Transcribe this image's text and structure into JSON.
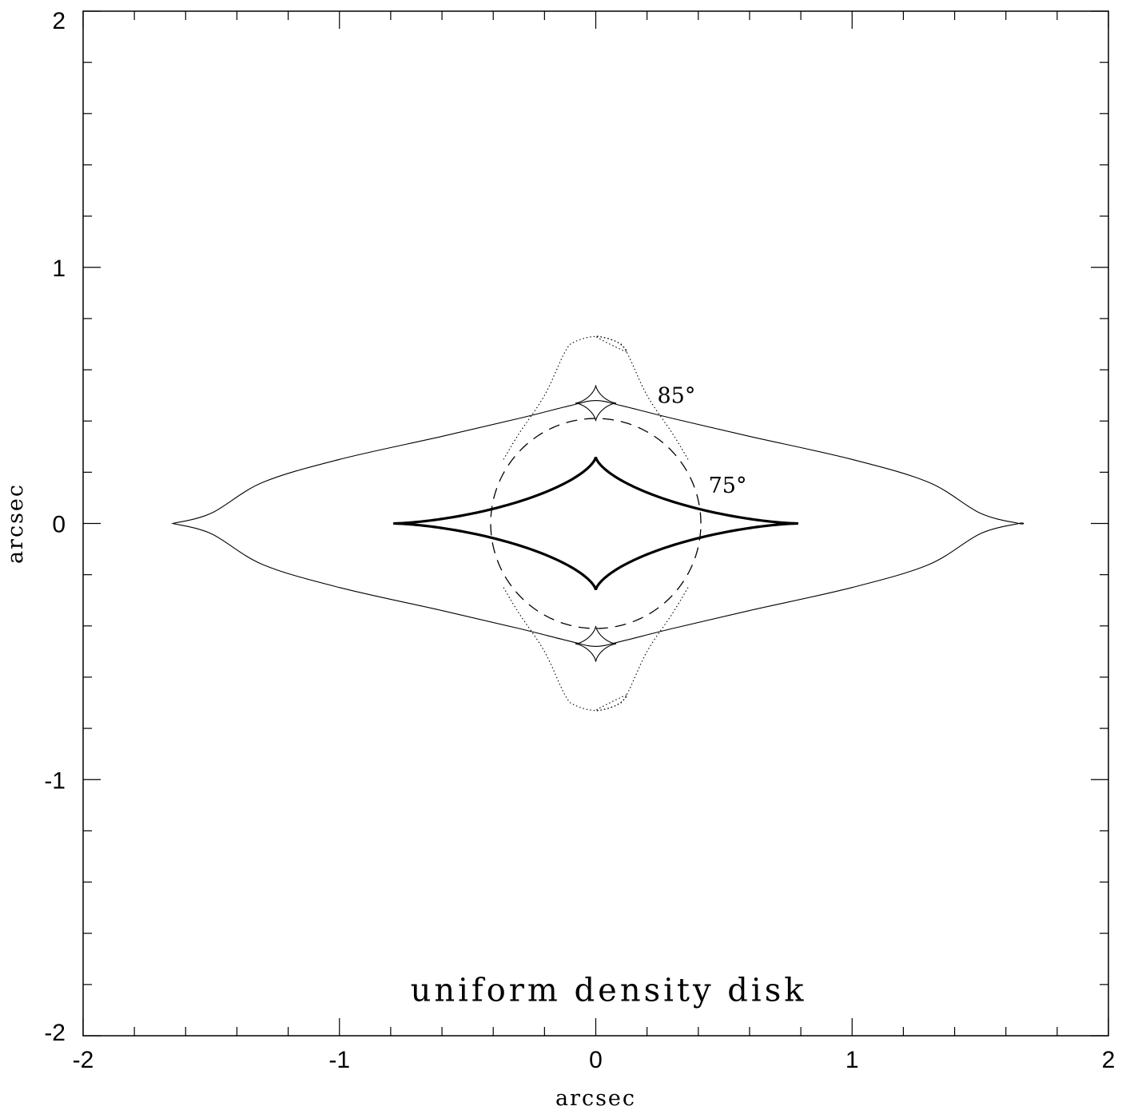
{
  "chart_data": {
    "type": "line",
    "xlabel": "arcsec",
    "ylabel": "arcsec",
    "xlim": [
      -2,
      2
    ],
    "ylim": [
      -2,
      2
    ],
    "x_ticks": [
      -2,
      -1,
      0,
      1,
      2
    ],
    "y_ticks": [
      -2,
      -1,
      0,
      1,
      2
    ],
    "x_tick_labels": [
      "-2",
      "-1",
      "0",
      "1",
      "2"
    ],
    "y_tick_labels": [
      "-2",
      "-1",
      "0",
      "1",
      "2"
    ],
    "minor_tick_step": 0.2,
    "grid": false,
    "caption": "uniform density disk",
    "annotations": [
      {
        "text": "85°",
        "x": 0.24,
        "y": 0.47
      },
      {
        "text": "75°",
        "x": 0.44,
        "y": 0.12
      }
    ],
    "series": [
      {
        "style": "bold-solid",
        "shape": "astroid",
        "center": [
          0,
          0
        ],
        "x_extent": 0.79,
        "y_extent": 0.26
      },
      {
        "style": "dashed",
        "shape": "ellipse",
        "center": [
          0,
          0
        ],
        "x_extent": 0.41,
        "y_extent": 0.41
      },
      {
        "style": "thin-solid",
        "shape": "lens",
        "points": [
          [
            -1.65,
            0
          ],
          [
            -1.5,
            0.04
          ],
          [
            -1.3,
            0.16
          ],
          [
            -1.0,
            0.25
          ],
          [
            -0.6,
            0.34
          ],
          [
            -0.3,
            0.41
          ],
          [
            -0.1,
            0.46
          ],
          [
            0,
            0.48
          ],
          [
            0.1,
            0.46
          ],
          [
            0.3,
            0.41
          ],
          [
            0.6,
            0.34
          ],
          [
            1.0,
            0.25
          ],
          [
            1.3,
            0.16
          ],
          [
            1.5,
            0.04
          ],
          [
            1.65,
            0
          ]
        ]
      },
      {
        "style": "dotted",
        "shape": "capsule",
        "points": [
          [
            -0.12,
            0.67
          ],
          [
            -0.08,
            0.71
          ],
          [
            0,
            0.73
          ],
          [
            0.08,
            0.71
          ],
          [
            0.12,
            0.67
          ],
          [
            0.2,
            0.5
          ],
          [
            0.3,
            0.35
          ],
          [
            0.36,
            0.25
          ]
        ]
      },
      {
        "style": "thin-solid",
        "shape": "astroid",
        "center": [
          0,
          0.47
        ],
        "x_extent": 0.08,
        "y_extent": 0.07
      },
      {
        "style": "thin-solid",
        "shape": "astroid",
        "center": [
          0,
          -0.47
        ],
        "x_extent": 0.08,
        "y_extent": 0.07
      }
    ]
  }
}
